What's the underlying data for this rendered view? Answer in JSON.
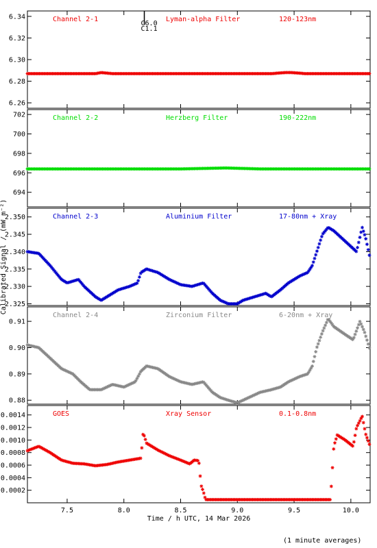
{
  "chart_data": {
    "type": "scatter",
    "marker": "*",
    "shared_x": {
      "label": "Time / h UTC, 14 Mar 2026",
      "range": [
        7.15,
        10.17
      ],
      "ticks": [
        7.5,
        8.0,
        8.5,
        9.0,
        9.5,
        10.0
      ],
      "tick_labels": [
        "7.5",
        "8.0",
        "8.5",
        "9.0",
        "9.5",
        "10.0"
      ]
    },
    "ylabel": "Calibrated Signal / (mW m⁻²)",
    "footnote": "(1 minute averages)",
    "event_marker": {
      "x": 8.18,
      "labels": [
        "C6.0",
        "C1.1"
      ]
    },
    "panels": [
      {
        "channel": "Channel 2-1",
        "filter": "Lyman-alpha Filter",
        "band": "120-123nm",
        "color": "#ee0000",
        "ylim": [
          6.255,
          6.345
        ],
        "yticks": [
          6.26,
          6.28,
          6.3,
          6.32,
          6.34
        ],
        "ytick_labels": [
          "6.26",
          "6.28",
          "6.30",
          "6.32",
          "6.34"
        ],
        "points": [
          [
            7.15,
            6.287
          ],
          [
            7.75,
            6.287
          ],
          [
            7.8,
            6.288
          ],
          [
            7.9,
            6.287
          ],
          [
            9.3,
            6.287
          ],
          [
            9.42,
            6.288
          ],
          [
            9.48,
            6.288
          ],
          [
            9.6,
            6.287
          ],
          [
            10.17,
            6.287
          ]
        ]
      },
      {
        "channel": "Channel 2-2",
        "filter": "Herzberg Filter",
        "band": "190-222nm",
        "color": "#00dd00",
        "ylim": [
          692.5,
          702.5
        ],
        "yticks": [
          694,
          696,
          698,
          700,
          702
        ],
        "ytick_labels": [
          "694",
          "696",
          "698",
          "700",
          "702"
        ],
        "points": [
          [
            7.15,
            696.4
          ],
          [
            8.5,
            696.4
          ],
          [
            8.9,
            696.5
          ],
          [
            9.2,
            696.4
          ],
          [
            10.17,
            696.4
          ]
        ]
      },
      {
        "channel": "Channel 2-3",
        "filter": "Aluminium Filter",
        "band": "17-80nm + Xray",
        "color": "#0000cc",
        "ylim": [
          2.3245,
          2.3525
        ],
        "yticks": [
          2.325,
          2.33,
          2.335,
          2.34,
          2.345,
          2.35
        ],
        "ytick_labels": [
          "2.325",
          "2.330",
          "2.335",
          "2.340",
          "2.345",
          "2.350"
        ],
        "points": [
          [
            7.15,
            2.34
          ],
          [
            7.25,
            2.3395
          ],
          [
            7.35,
            2.336
          ],
          [
            7.45,
            2.332
          ],
          [
            7.5,
            2.331
          ],
          [
            7.6,
            2.332
          ],
          [
            7.65,
            2.33
          ],
          [
            7.75,
            2.327
          ],
          [
            7.8,
            2.326
          ],
          [
            7.85,
            2.327
          ],
          [
            7.95,
            2.329
          ],
          [
            8.05,
            2.33
          ],
          [
            8.12,
            2.331
          ],
          [
            8.15,
            2.334
          ],
          [
            8.2,
            2.335
          ],
          [
            8.3,
            2.334
          ],
          [
            8.4,
            2.332
          ],
          [
            8.5,
            2.3305
          ],
          [
            8.6,
            2.33
          ],
          [
            8.7,
            2.331
          ],
          [
            8.78,
            2.328
          ],
          [
            8.85,
            2.326
          ],
          [
            8.92,
            2.325
          ],
          [
            9.0,
            2.325
          ],
          [
            9.05,
            2.326
          ],
          [
            9.15,
            2.327
          ],
          [
            9.25,
            2.328
          ],
          [
            9.3,
            2.327
          ],
          [
            9.38,
            2.329
          ],
          [
            9.45,
            2.331
          ],
          [
            9.55,
            2.333
          ],
          [
            9.62,
            2.334
          ],
          [
            9.66,
            2.336
          ],
          [
            9.7,
            2.34
          ],
          [
            9.75,
            2.345
          ],
          [
            9.8,
            2.347
          ],
          [
            9.85,
            2.346
          ],
          [
            9.95,
            2.343
          ],
          [
            10.05,
            2.34
          ],
          [
            10.1,
            2.347
          ],
          [
            10.13,
            2.344
          ],
          [
            10.17,
            2.338
          ]
        ]
      },
      {
        "channel": "Channel 2-4",
        "filter": "Zirconium Filter",
        "band": "6-20nm + Xray",
        "color": "#888888",
        "ylim": [
          0.8785,
          0.9155
        ],
        "yticks": [
          0.88,
          0.89,
          0.9,
          0.91
        ],
        "ytick_labels": [
          "0.88",
          "0.89",
          "0.90",
          "0.91"
        ],
        "points": [
          [
            7.15,
            0.901
          ],
          [
            7.25,
            0.9
          ],
          [
            7.35,
            0.896
          ],
          [
            7.45,
            0.892
          ],
          [
            7.55,
            0.89
          ],
          [
            7.62,
            0.887
          ],
          [
            7.7,
            0.884
          ],
          [
            7.8,
            0.884
          ],
          [
            7.9,
            0.886
          ],
          [
            8.0,
            0.885
          ],
          [
            8.1,
            0.887
          ],
          [
            8.15,
            0.891
          ],
          [
            8.2,
            0.893
          ],
          [
            8.3,
            0.892
          ],
          [
            8.4,
            0.889
          ],
          [
            8.5,
            0.887
          ],
          [
            8.6,
            0.886
          ],
          [
            8.7,
            0.887
          ],
          [
            8.78,
            0.883
          ],
          [
            8.85,
            0.881
          ],
          [
            8.92,
            0.88
          ],
          [
            9.0,
            0.879
          ],
          [
            9.1,
            0.881
          ],
          [
            9.2,
            0.883
          ],
          [
            9.3,
            0.884
          ],
          [
            9.38,
            0.885
          ],
          [
            9.45,
            0.887
          ],
          [
            9.55,
            0.889
          ],
          [
            9.62,
            0.89
          ],
          [
            9.66,
            0.893
          ],
          [
            9.7,
            0.9
          ],
          [
            9.75,
            0.906
          ],
          [
            9.8,
            0.911
          ],
          [
            9.85,
            0.908
          ],
          [
            9.95,
            0.905
          ],
          [
            10.02,
            0.903
          ],
          [
            10.08,
            0.91
          ],
          [
            10.12,
            0.906
          ],
          [
            10.17,
            0.899
          ]
        ]
      },
      {
        "channel": "GOES",
        "filter": "Xray Sensor",
        "band": "0.1-0.8nm",
        "color": "#ee0000",
        "ylim": [
          0.0,
          0.00155
        ],
        "yticks": [
          0.0002,
          0.0004,
          0.0006,
          0.0008,
          0.001,
          0.0012,
          0.0014
        ],
        "ytick_labels": [
          "0.0002",
          "0.0004",
          "0.0006",
          "0.0008",
          "0.0010",
          "0.0012",
          "0.0014"
        ],
        "points": [
          [
            7.15,
            0.00083
          ],
          [
            7.25,
            0.0009
          ],
          [
            7.35,
            0.0008
          ],
          [
            7.45,
            0.00068
          ],
          [
            7.55,
            0.00063
          ],
          [
            7.65,
            0.00062
          ],
          [
            7.75,
            0.00059
          ],
          [
            7.85,
            0.00061
          ],
          [
            7.95,
            0.00065
          ],
          [
            8.05,
            0.00068
          ],
          [
            8.15,
            0.00071
          ],
          [
            8.17,
            0.00112
          ],
          [
            8.2,
            0.00095
          ],
          [
            8.3,
            0.00084
          ],
          [
            8.4,
            0.00075
          ],
          [
            8.5,
            0.00068
          ],
          [
            8.58,
            0.00062
          ],
          [
            8.62,
            0.00068
          ],
          [
            8.66,
            0.00067
          ],
          [
            8.68,
            0.00028
          ],
          [
            8.7,
            0.00018
          ],
          [
            8.72,
            5e-05
          ],
          [
            9.0,
            5e-05
          ],
          [
            9.5,
            5e-05
          ],
          [
            9.82,
            5e-05
          ],
          [
            9.85,
            0.0009
          ],
          [
            9.88,
            0.00108
          ],
          [
            9.95,
            0.001
          ],
          [
            10.02,
            0.0009
          ],
          [
            10.05,
            0.0012
          ],
          [
            10.1,
            0.00138
          ],
          [
            10.13,
            0.0011
          ],
          [
            10.17,
            0.0009
          ]
        ]
      }
    ]
  }
}
